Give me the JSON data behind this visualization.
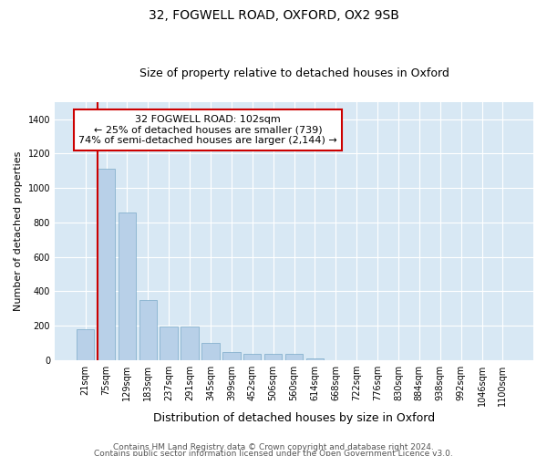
{
  "title_line1": "32, FOGWELL ROAD, OXFORD, OX2 9SB",
  "title_line2": "Size of property relative to detached houses in Oxford",
  "xlabel": "Distribution of detached houses by size in Oxford",
  "ylabel": "Number of detached properties",
  "footer_line1": "Contains HM Land Registry data © Crown copyright and database right 2024.",
  "footer_line2": "Contains public sector information licensed under the Open Government Licence v3.0.",
  "annotation_line1": "32 FOGWELL ROAD: 102sqm",
  "annotation_line2": "← 25% of detached houses are smaller (739)",
  "annotation_line3": "74% of semi-detached houses are larger (2,144) →",
  "bar_color": "#b8d0e8",
  "bar_edge_color": "#7aaac8",
  "red_line_color": "#cc0000",
  "annotation_box_edge_color": "#cc0000",
  "background_color": "#d8e8f4",
  "fig_background": "#ffffff",
  "categories": [
    "21sqm",
    "75sqm",
    "129sqm",
    "183sqm",
    "237sqm",
    "291sqm",
    "345sqm",
    "399sqm",
    "452sqm",
    "506sqm",
    "560sqm",
    "614sqm",
    "668sqm",
    "722sqm",
    "776sqm",
    "830sqm",
    "884sqm",
    "938sqm",
    "992sqm",
    "1046sqm",
    "1100sqm"
  ],
  "values": [
    180,
    1110,
    860,
    350,
    195,
    195,
    100,
    50,
    35,
    35,
    35,
    10,
    0,
    0,
    0,
    0,
    0,
    0,
    0,
    0,
    0
  ],
  "ylim": [
    0,
    1500
  ],
  "yticks": [
    0,
    200,
    400,
    600,
    800,
    1000,
    1200,
    1400
  ],
  "red_line_bin": 1,
  "title_fontsize": 10,
  "subtitle_fontsize": 9,
  "ylabel_fontsize": 8,
  "xlabel_fontsize": 9,
  "tick_fontsize": 7,
  "annotation_fontsize": 8,
  "footer_fontsize": 6.5
}
